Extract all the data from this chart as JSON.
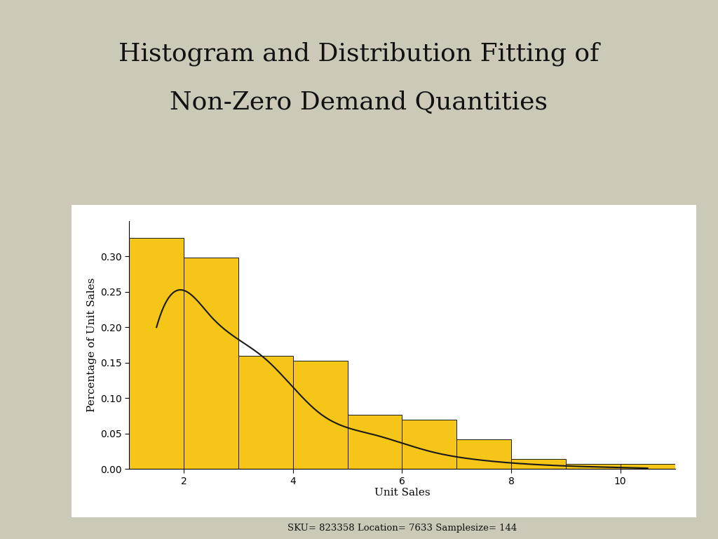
{
  "title_line1": "Histogram and Distribution Fitting of",
  "title_line2": "Non-Zero Demand Quantities",
  "xlabel": "Unit Sales",
  "xlabel2": "SKU= 823358 Location= 7633 Samplesize= 144",
  "ylabel": "Percentage of Unit Sales",
  "background_color": "#cdc9b8",
  "plot_bg_color": "#ffffff",
  "bar_color": "#f5c518",
  "bar_edge_color": "#1a1a1a",
  "bar_lefts": [
    1,
    2,
    3,
    4,
    5,
    6,
    7,
    8,
    9,
    10
  ],
  "bar_heights": [
    0.3264,
    0.2986,
    0.1597,
    0.1528,
    0.0764,
    0.0694,
    0.0417,
    0.0139,
    0.0069,
    0.0069
  ],
  "bar_width": 1.0,
  "ylim": [
    0,
    0.35
  ],
  "xlim": [
    1,
    11
  ],
  "xticks": [
    2,
    4,
    6,
    8,
    10
  ],
  "yticks": [
    0.0,
    0.05,
    0.1,
    0.15,
    0.2,
    0.25,
    0.3
  ],
  "curve_color": "#1a1a1a",
  "curve_points_x": [
    1.5,
    2.0,
    2.5,
    3.5,
    4.5,
    5.5,
    6.5,
    7.5,
    8.5,
    9.5,
    10.5
  ],
  "curve_points_y": [
    0.2,
    0.252,
    0.215,
    0.155,
    0.078,
    0.048,
    0.025,
    0.012,
    0.006,
    0.003,
    0.001
  ],
  "title_fontsize": 26,
  "axis_fontsize": 11,
  "tick_fontsize": 10,
  "title_color": "#111111"
}
